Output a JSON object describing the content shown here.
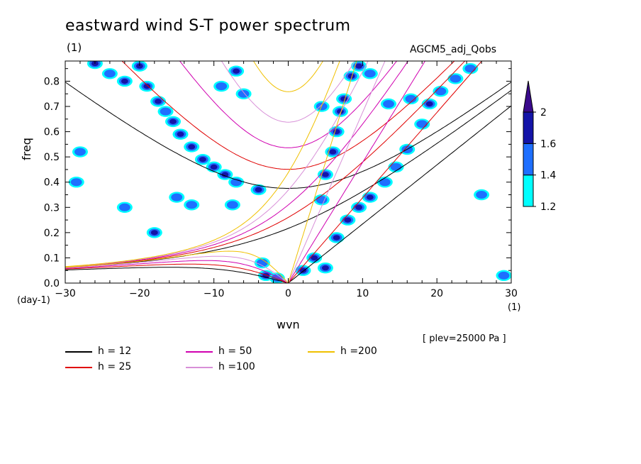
{
  "chart_data": {
    "type": "heatmap",
    "title": "eastward wind S-T power spectrum",
    "subtitle_left": "(1)",
    "subtitle_right": "AGCM5_adj_Qobs",
    "xlabel": "wvn",
    "ylabel": "freq",
    "x_unit": "(1)",
    "y_unit": "(day-1)",
    "xlim": [
      -30,
      30
    ],
    "ylim": [
      0,
      0.88
    ],
    "x_ticks": [
      -30,
      -20,
      -10,
      0,
      10,
      20,
      30
    ],
    "x_tick_labels": [
      "−30",
      "−20",
      "−10",
      "0",
      "10",
      "20",
      "30"
    ],
    "y_ticks": [
      0.0,
      0.1,
      0.2,
      0.3,
      0.4,
      0.5,
      0.6,
      0.7,
      0.8
    ],
    "y_tick_labels": [
      "0.0",
      "0.1",
      "0.2",
      "0.3",
      "0.4",
      "0.5",
      "0.6",
      "0.7",
      "0.8"
    ],
    "annotation": "[ plev=25000 Pa ]",
    "colorbar": {
      "levels": [
        1.2,
        1.4,
        1.6,
        2
      ],
      "labels": [
        "1.2",
        "1.4",
        "1.6",
        "2"
      ],
      "colors": [
        "#00ffff",
        "#1e6fff",
        "#1414a8",
        "#3a0a8c"
      ]
    },
    "dispersion_curves": [
      {
        "h": 12,
        "label": "h = 12",
        "color": "#000000"
      },
      {
        "h": 25,
        "label": "h = 25",
        "color": "#e00000"
      },
      {
        "h": 50,
        "label": "h = 50",
        "color": "#d000b0"
      },
      {
        "h": 100,
        "label": "h =100",
        "color": "#d890d8"
      },
      {
        "h": 200,
        "label": "h =200",
        "color": "#f0c000"
      }
    ],
    "power_blobs": [
      {
        "x": -26.0,
        "y": 0.87,
        "level": 2
      },
      {
        "x": -24.0,
        "y": 0.83,
        "level": 1
      },
      {
        "x": -22.0,
        "y": 0.8,
        "level": 2
      },
      {
        "x": -20.0,
        "y": 0.86,
        "level": 2
      },
      {
        "x": -19.0,
        "y": 0.78,
        "level": 2
      },
      {
        "x": -17.5,
        "y": 0.72,
        "level": 2
      },
      {
        "x": -16.5,
        "y": 0.68,
        "level": 1
      },
      {
        "x": -15.5,
        "y": 0.64,
        "level": 2
      },
      {
        "x": -14.5,
        "y": 0.59,
        "level": 2
      },
      {
        "x": -13.0,
        "y": 0.54,
        "level": 2
      },
      {
        "x": -11.5,
        "y": 0.49,
        "level": 2
      },
      {
        "x": -10.0,
        "y": 0.46,
        "level": 2
      },
      {
        "x": -8.5,
        "y": 0.43,
        "level": 2
      },
      {
        "x": -7.0,
        "y": 0.4,
        "level": 1
      },
      {
        "x": -4.0,
        "y": 0.37,
        "level": 2
      },
      {
        "x": -7.0,
        "y": 0.84,
        "level": 2
      },
      {
        "x": -6.0,
        "y": 0.75,
        "level": 1
      },
      {
        "x": -9.0,
        "y": 0.78,
        "level": 1
      },
      {
        "x": -3.0,
        "y": 0.03,
        "level": 2
      },
      {
        "x": -1.5,
        "y": 0.02,
        "level": 1
      },
      {
        "x": 2.0,
        "y": 0.05,
        "level": 2
      },
      {
        "x": 3.5,
        "y": 0.1,
        "level": 2
      },
      {
        "x": 5.0,
        "y": 0.06,
        "level": 2
      },
      {
        "x": 6.5,
        "y": 0.18,
        "level": 2
      },
      {
        "x": 8.0,
        "y": 0.25,
        "level": 2
      },
      {
        "x": 9.5,
        "y": 0.3,
        "level": 2
      },
      {
        "x": 11.0,
        "y": 0.34,
        "level": 2
      },
      {
        "x": 13.0,
        "y": 0.4,
        "level": 1
      },
      {
        "x": 14.5,
        "y": 0.46,
        "level": 1
      },
      {
        "x": 16.0,
        "y": 0.53,
        "level": 1
      },
      {
        "x": 5.0,
        "y": 0.43,
        "level": 2
      },
      {
        "x": 6.0,
        "y": 0.52,
        "level": 2
      },
      {
        "x": 6.5,
        "y": 0.6,
        "level": 2
      },
      {
        "x": 7.0,
        "y": 0.68,
        "level": 2
      },
      {
        "x": 7.5,
        "y": 0.73,
        "level": 2
      },
      {
        "x": 8.5,
        "y": 0.82,
        "level": 2
      },
      {
        "x": 9.5,
        "y": 0.86,
        "level": 2
      },
      {
        "x": 4.5,
        "y": 0.33,
        "level": 1
      },
      {
        "x": 4.5,
        "y": 0.7,
        "level": 1
      },
      {
        "x": 11.0,
        "y": 0.83,
        "level": 1
      },
      {
        "x": 13.5,
        "y": 0.71,
        "level": 1
      },
      {
        "x": 16.5,
        "y": 0.73,
        "level": 1
      },
      {
        "x": 19.0,
        "y": 0.71,
        "level": 2
      },
      {
        "x": 20.5,
        "y": 0.76,
        "level": 1
      },
      {
        "x": 22.5,
        "y": 0.81,
        "level": 1
      },
      {
        "x": 24.5,
        "y": 0.85,
        "level": 1
      },
      {
        "x": 18.0,
        "y": 0.63,
        "level": 1
      },
      {
        "x": -28.5,
        "y": 0.4,
        "level": 1
      },
      {
        "x": -18.0,
        "y": 0.2,
        "level": 2
      },
      {
        "x": -28.0,
        "y": 0.52,
        "level": 1
      },
      {
        "x": -22.0,
        "y": 0.3,
        "level": 1
      },
      {
        "x": -15.0,
        "y": 0.34,
        "level": 1
      },
      {
        "x": -13.0,
        "y": 0.31,
        "level": 1
      },
      {
        "x": -7.5,
        "y": 0.31,
        "level": 1
      },
      {
        "x": 29.0,
        "y": 0.03,
        "level": 1
      },
      {
        "x": -3.5,
        "y": 0.08,
        "level": 1
      },
      {
        "x": 26.0,
        "y": 0.35,
        "level": 1
      }
    ]
  }
}
